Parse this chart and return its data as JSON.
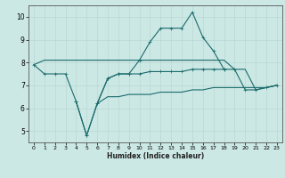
{
  "xlabel": "Humidex (Indice chaleur)",
  "ylabel": "",
  "background_color": "#cce8e5",
  "grid_color": "#b8d8d5",
  "line_color": "#1a6b6b",
  "x": [
    0,
    1,
    2,
    3,
    4,
    5,
    6,
    7,
    8,
    9,
    10,
    11,
    12,
    13,
    14,
    15,
    16,
    17,
    18,
    19,
    20,
    21,
    22,
    23
  ],
  "series1": [
    7.9,
    8.1,
    8.1,
    8.1,
    8.1,
    8.1,
    8.1,
    8.1,
    8.1,
    8.1,
    8.1,
    8.1,
    8.1,
    8.1,
    8.1,
    8.1,
    8.1,
    8.1,
    8.1,
    7.7,
    7.7,
    6.8,
    6.9,
    7.0
  ],
  "series2": [
    7.9,
    7.5,
    7.5,
    7.5,
    6.3,
    4.8,
    6.2,
    7.3,
    7.5,
    7.5,
    7.5,
    7.6,
    7.6,
    7.6,
    7.6,
    7.7,
    7.7,
    7.7,
    7.7,
    7.7,
    6.8,
    6.8,
    6.9,
    7.0
  ],
  "series3": [
    null,
    null,
    null,
    null,
    6.3,
    4.8,
    6.2,
    7.3,
    7.5,
    7.5,
    8.1,
    8.9,
    9.5,
    9.5,
    9.5,
    10.2,
    9.1,
    8.5,
    7.7,
    null,
    null,
    null,
    null,
    null
  ],
  "series4": [
    null,
    null,
    null,
    null,
    null,
    null,
    6.2,
    6.5,
    6.5,
    6.6,
    6.6,
    6.6,
    6.7,
    6.7,
    6.7,
    6.8,
    6.8,
    6.9,
    6.9,
    6.9,
    6.9,
    6.9,
    6.9,
    7.0
  ],
  "xlim": [
    -0.5,
    23.5
  ],
  "ylim": [
    4.5,
    10.5
  ],
  "yticks": [
    5,
    6,
    7,
    8,
    9,
    10
  ],
  "xticks": [
    0,
    1,
    2,
    3,
    4,
    5,
    6,
    7,
    8,
    9,
    10,
    11,
    12,
    13,
    14,
    15,
    16,
    17,
    18,
    19,
    20,
    21,
    22,
    23
  ]
}
